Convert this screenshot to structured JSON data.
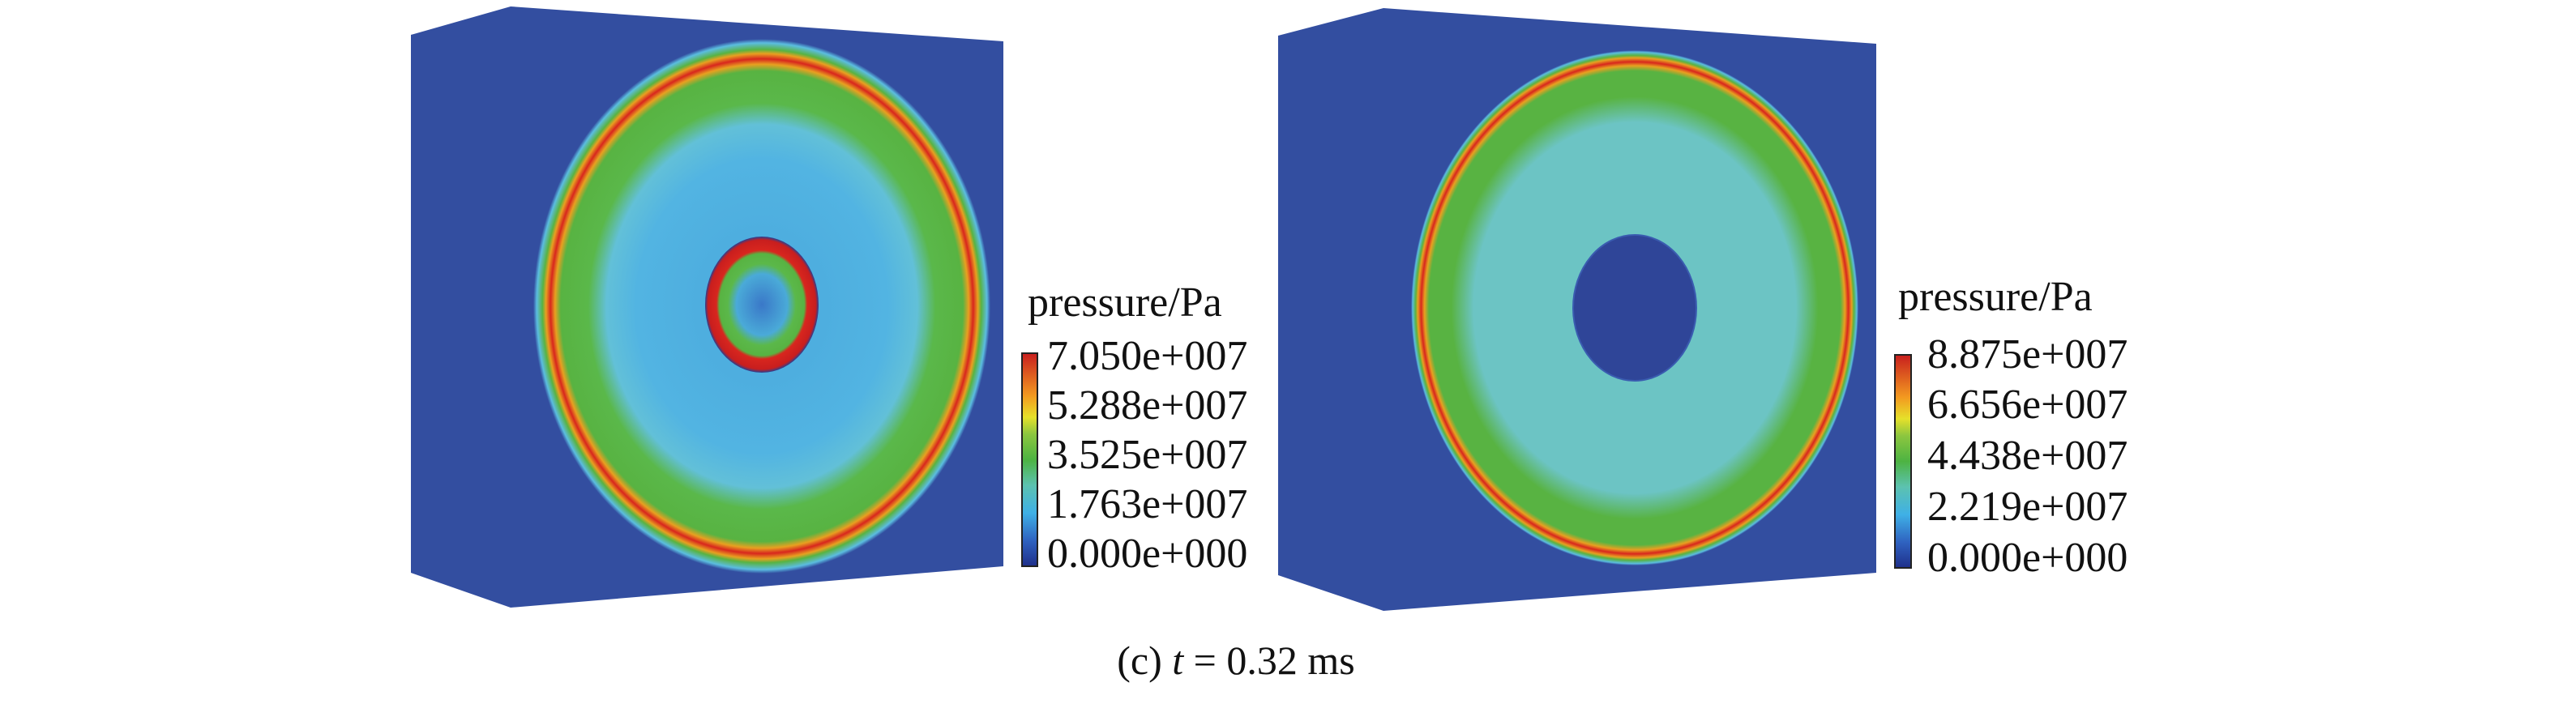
{
  "figure": {
    "caption_prefix": "(c) ",
    "caption_var": "t",
    "caption_suffix": " = 0.32 ms"
  },
  "panels": [
    {
      "colorbar": {
        "title": "pressure/Pa",
        "labels": [
          "7.050e+007",
          "5.288e+007",
          "3.525e+007",
          "1.763e+007",
          "0.000e+000"
        ],
        "max": 70500000.0,
        "min": 0
      }
    },
    {
      "colorbar": {
        "title": "pressure/Pa",
        "labels": [
          "8.875e+007",
          "6.656e+007",
          "4.438e+007",
          "2.219e+007",
          "0.000e+000"
        ],
        "max": 88750000.0,
        "min": 0
      }
    }
  ],
  "colors": {
    "background_blue": "#334ea0",
    "red": "#d8261e",
    "green": "#58b342",
    "cyan": "#5bbde0",
    "teal": "#6cc4c4"
  }
}
